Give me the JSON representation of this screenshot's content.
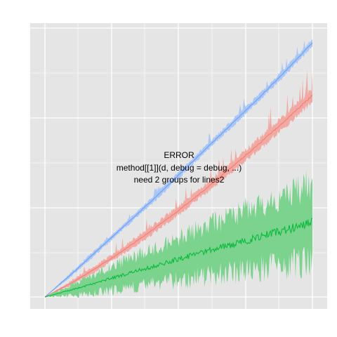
{
  "chart_data": {
    "type": "area",
    "title": "",
    "xlabel": "",
    "ylabel": "",
    "x_range": [
      0,
      100
    ],
    "y_range": [
      0,
      100
    ],
    "grid": true,
    "legend": "none",
    "panel_background": "#E5E5E5",
    "grid_color": "#FFFFFF",
    "annotation": {
      "lines": [
        "ERROR",
        "method[[1]](d, debug = debug, ...)",
        "need 2 groups for lines2"
      ]
    },
    "series": [
      {
        "color": "#619CFF",
        "band_color": "#A9C6F5",
        "x": [
          0,
          10,
          20,
          30,
          40,
          50,
          60,
          70,
          80,
          90,
          100
        ],
        "center": [
          0,
          9,
          18.5,
          28,
          37.5,
          47.5,
          57.5,
          67.5,
          77.5,
          88,
          99
        ],
        "lower": [
          0,
          8.2,
          17.5,
          27,
          36.3,
          46.3,
          56.3,
          66.2,
          76.2,
          86.6,
          97.6
        ],
        "upper": [
          0,
          9.8,
          19.5,
          29,
          38.7,
          48.7,
          58.7,
          68.8,
          78.8,
          89.4,
          100.4
        ]
      },
      {
        "color": "#F8766D",
        "band_color": "#F0A9A3",
        "x": [
          0,
          10,
          20,
          30,
          40,
          50,
          60,
          70,
          80,
          90,
          100
        ],
        "center": [
          0,
          5.5,
          11.8,
          18.6,
          26,
          33.7,
          42,
          50.6,
          59.6,
          68.8,
          78.5
        ],
        "lower": [
          0,
          4.6,
          10.6,
          17.2,
          24.4,
          32,
          40.2,
          48.6,
          57.4,
          66.5,
          76
        ],
        "upper": [
          0,
          6.4,
          13,
          20,
          27.6,
          35.4,
          43.8,
          52.6,
          61.8,
          71.1,
          81
        ]
      },
      {
        "color": "#00BA38",
        "band_color": "#7CD38E",
        "x": [
          0,
          10,
          20,
          30,
          40,
          50,
          60,
          70,
          80,
          90,
          100
        ],
        "center": [
          0,
          2.8,
          5.8,
          8.8,
          11.8,
          14.8,
          17.6,
          20.5,
          23.3,
          26.1,
          29
        ],
        "lower": [
          0,
          0.5,
          1.8,
          3.3,
          4.8,
          6.5,
          8.0,
          9.5,
          11.0,
          12.5,
          14
        ],
        "upper": [
          0,
          4.8,
          9.5,
          14.2,
          18.6,
          23,
          27.3,
          31.6,
          35.7,
          39.8,
          44
        ]
      }
    ]
  }
}
